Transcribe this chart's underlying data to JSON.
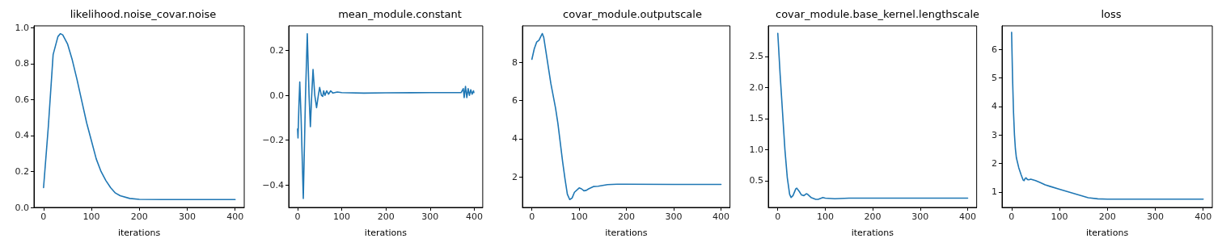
{
  "chart_data": [
    {
      "type": "line",
      "title": "likelihood.noise_covar.noise",
      "xlabel": "iterations",
      "color": "#1f77b4",
      "marker": "none",
      "grid": false,
      "xlim": [
        -20,
        419
      ],
      "xticks": [
        0,
        100,
        200,
        300,
        400
      ],
      "ylim": [
        0,
        1.01
      ],
      "yticks": [
        {
          "value": 0,
          "label": "0.0"
        },
        {
          "value": 0.2,
          "label": "0.2"
        },
        {
          "value": 0.4,
          "label": "0.4"
        },
        {
          "value": 0.6,
          "label": "0.6"
        },
        {
          "value": 0.8,
          "label": "0.8"
        },
        {
          "value": 1,
          "label": "1.0"
        }
      ],
      "x": [
        0,
        10,
        20,
        30,
        35,
        40,
        50,
        60,
        70,
        80,
        90,
        100,
        110,
        120,
        130,
        140,
        150,
        160,
        180,
        200,
        250,
        300,
        400
      ],
      "values": [
        0.11,
        0.45,
        0.85,
        0.95,
        0.966,
        0.96,
        0.91,
        0.82,
        0.71,
        0.59,
        0.47,
        0.37,
        0.27,
        0.2,
        0.15,
        0.11,
        0.08,
        0.065,
        0.05,
        0.045,
        0.044,
        0.044,
        0.044
      ]
    },
    {
      "type": "line",
      "title": "mean_module.constant",
      "xlabel": "iterations",
      "color": "#1f77b4",
      "marker": "none",
      "grid": false,
      "xlim": [
        -20,
        419
      ],
      "xticks": [
        0,
        100,
        200,
        300,
        400
      ],
      "ylim": [
        -0.5,
        0.31
      ],
      "yticks": [
        {
          "value": -0.4,
          "label": "−0.4"
        },
        {
          "value": -0.2,
          "label": "−0.2"
        },
        {
          "value": 0,
          "label": "0.0"
        },
        {
          "value": 0.2,
          "label": "0.2"
        }
      ],
      "x": [
        0,
        1,
        3,
        5,
        8,
        13,
        18,
        22,
        26,
        29,
        32,
        35,
        39,
        43,
        47,
        50,
        54,
        57,
        59,
        62,
        66,
        70,
        75,
        80,
        90,
        100,
        150,
        200,
        300,
        370,
        375,
        377,
        380,
        383,
        386,
        389,
        392,
        395,
        398,
        399
      ],
      "values": [
        -0.15,
        -0.19,
        -0.05,
        0.06,
        -0.1,
        -0.46,
        0.0,
        0.275,
        0.0,
        -0.14,
        0.0,
        0.115,
        0.0,
        -0.055,
        0.0,
        0.035,
        0.0,
        -0.005,
        0.02,
        0.0,
        0.02,
        0.005,
        0.02,
        0.01,
        0.015,
        0.012,
        0.01,
        0.011,
        0.012,
        0.012,
        0.03,
        -0.01,
        0.04,
        -0.01,
        0.03,
        0.0,
        0.025,
        0.005,
        0.02,
        0.012
      ]
    },
    {
      "type": "line",
      "title": "covar_module.outputscale",
      "xlabel": "iterations",
      "color": "#1f77b4",
      "marker": "none",
      "grid": false,
      "xlim": [
        -20,
        419
      ],
      "xticks": [
        0,
        100,
        200,
        300,
        400
      ],
      "ylim": [
        0.41,
        9.9
      ],
      "yticks": [
        2,
        4,
        6,
        8
      ],
      "x": [
        0,
        5,
        10,
        15,
        20,
        22,
        25,
        30,
        40,
        50,
        55,
        60,
        65,
        70,
        75,
        80,
        85,
        90,
        100,
        105,
        110,
        115,
        120,
        130,
        140,
        150,
        160,
        180,
        200,
        300,
        400
      ],
      "values": [
        8.15,
        8.7,
        9.05,
        9.15,
        9.4,
        9.5,
        9.3,
        8.5,
        6.9,
        5.6,
        4.8,
        3.8,
        2.8,
        1.9,
        1.1,
        0.82,
        0.9,
        1.2,
        1.43,
        1.38,
        1.28,
        1.3,
        1.38,
        1.5,
        1.52,
        1.56,
        1.6,
        1.62,
        1.62,
        1.61,
        1.61
      ]
    },
    {
      "type": "line",
      "title": "covar_module.base_kernel.lengthscale",
      "xlabel": "iterations",
      "color": "#1f77b4",
      "marker": "none",
      "grid": false,
      "xlim": [
        -20,
        419
      ],
      "xticks": [
        0,
        100,
        200,
        300,
        400
      ],
      "ylim": [
        0.07,
        2.99
      ],
      "yticks": [
        {
          "value": 0.5,
          "label": "0.5"
        },
        {
          "value": 1,
          "label": "1.0"
        },
        {
          "value": 1.5,
          "label": "1.5"
        },
        {
          "value": 2,
          "label": "2.0"
        },
        {
          "value": 2.5,
          "label": "2.5"
        }
      ],
      "x": [
        0,
        5,
        10,
        15,
        20,
        25,
        28,
        32,
        38,
        40,
        45,
        50,
        55,
        60,
        63,
        70,
        80,
        85,
        95,
        100,
        120,
        150,
        200,
        400
      ],
      "values": [
        2.87,
        2.2,
        1.6,
        1.0,
        0.55,
        0.28,
        0.23,
        0.26,
        0.37,
        0.38,
        0.33,
        0.27,
        0.26,
        0.29,
        0.28,
        0.23,
        0.2,
        0.2,
        0.23,
        0.22,
        0.21,
        0.22,
        0.22,
        0.22
      ]
    },
    {
      "type": "line",
      "title": "loss",
      "xlabel": "iterations",
      "color": "#1f77b4",
      "marker": "none",
      "grid": false,
      "xlim": [
        -20,
        419
      ],
      "xticks": [
        0,
        100,
        200,
        300,
        400
      ],
      "ylim": [
        0.46,
        6.83
      ],
      "yticks": [
        1,
        2,
        3,
        4,
        5,
        6
      ],
      "x": [
        0,
        2,
        4,
        6,
        8,
        10,
        15,
        20,
        24,
        26,
        28,
        30,
        33,
        36,
        40,
        50,
        60,
        70,
        80,
        100,
        120,
        140,
        160,
        180,
        200,
        300,
        400
      ],
      "values": [
        6.6,
        5.0,
        3.8,
        3.0,
        2.5,
        2.2,
        1.85,
        1.6,
        1.42,
        1.4,
        1.47,
        1.5,
        1.44,
        1.43,
        1.45,
        1.4,
        1.33,
        1.25,
        1.2,
        1.1,
        1.0,
        0.9,
        0.8,
        0.76,
        0.75,
        0.75,
        0.75
      ]
    }
  ]
}
